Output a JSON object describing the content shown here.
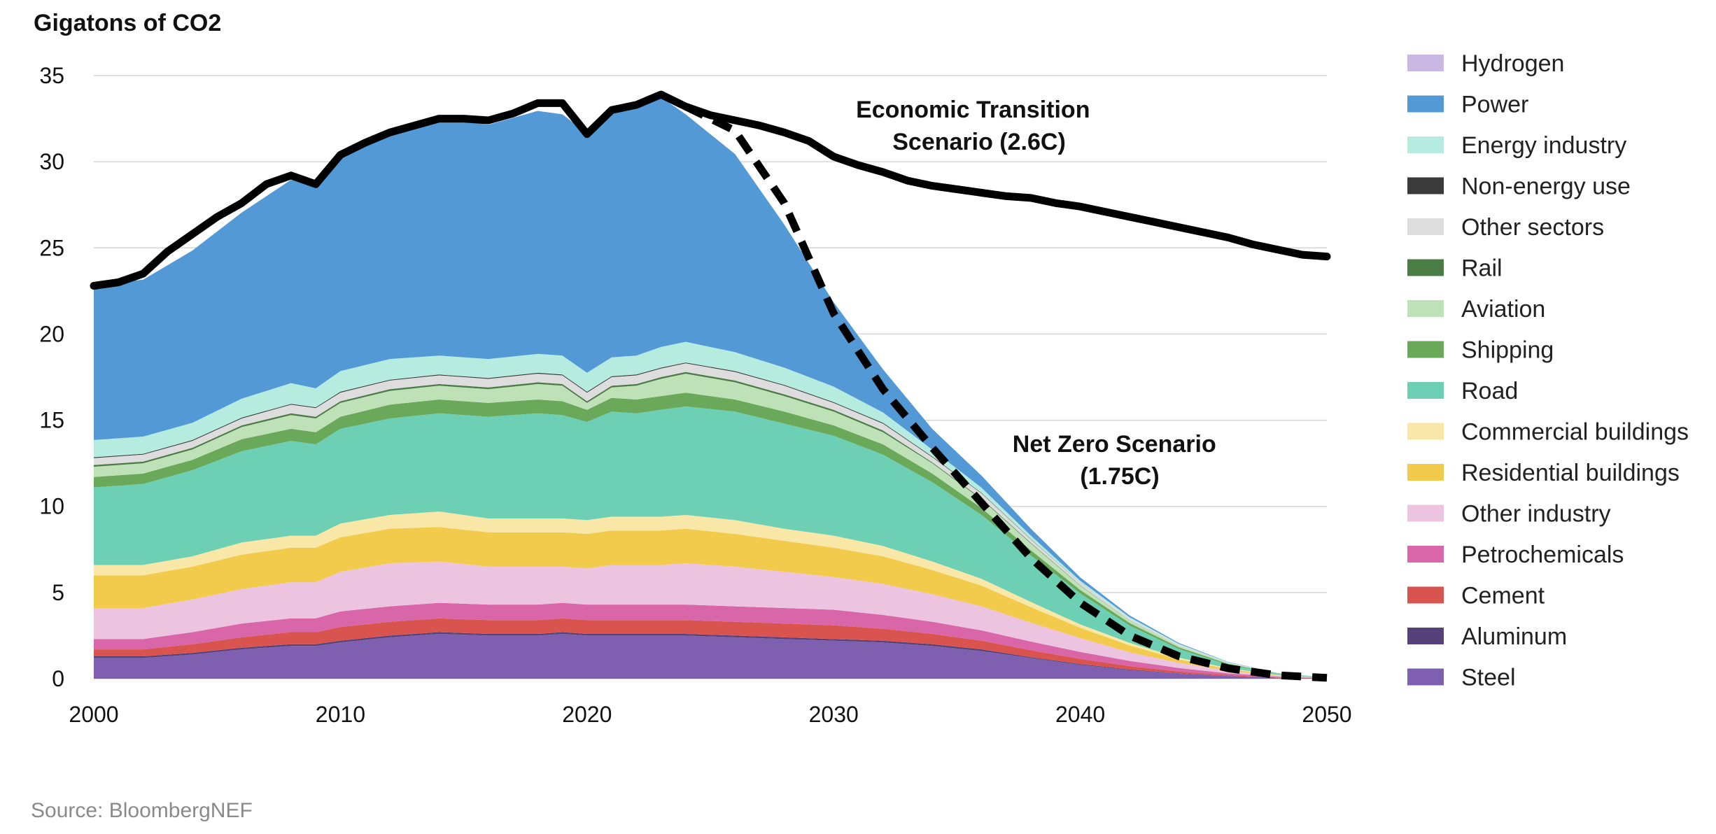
{
  "chart_data": {
    "type": "area",
    "title": "",
    "ylabel": "Gigatons of CO2",
    "xlabel": "",
    "source": "Source: BloombergNEF",
    "xlim": [
      2000,
      2050
    ],
    "ylim": [
      0,
      35
    ],
    "grid": true,
    "legend_position": "right",
    "xticks": [
      "2000",
      "2010",
      "2020",
      "2030",
      "2040",
      "2050"
    ],
    "yticks": [
      "0",
      "5",
      "10",
      "15",
      "20",
      "25",
      "30",
      "35"
    ],
    "x": [
      2000,
      2002,
      2004,
      2006,
      2008,
      2009,
      2010,
      2012,
      2014,
      2016,
      2018,
      2019,
      2020,
      2021,
      2022,
      2023,
      2024,
      2026,
      2028,
      2030,
      2032,
      2034,
      2036,
      2038,
      2040,
      2042,
      2044,
      2046,
      2048,
      2050
    ],
    "series": [
      {
        "name": "Steel",
        "color": "#7e5fb0",
        "values": [
          1.2,
          1.2,
          1.4,
          1.7,
          1.9,
          1.9,
          2.1,
          2.4,
          2.6,
          2.5,
          2.5,
          2.6,
          2.5,
          2.5,
          2.5,
          2.5,
          2.5,
          2.4,
          2.3,
          2.2,
          2.1,
          1.9,
          1.6,
          1.2,
          0.8,
          0.5,
          0.3,
          0.15,
          0.05,
          0.02
        ]
      },
      {
        "name": "Aluminum",
        "color": "#56417a",
        "values": [
          0.1,
          0.1,
          0.1,
          0.1,
          0.1,
          0.1,
          0.1,
          0.1,
          0.1,
          0.1,
          0.1,
          0.1,
          0.1,
          0.1,
          0.1,
          0.1,
          0.1,
          0.1,
          0.1,
          0.1,
          0.1,
          0.1,
          0.1,
          0.05,
          0.05,
          0.03,
          0.02,
          0.01,
          0.0,
          0.0
        ]
      },
      {
        "name": "Cement",
        "color": "#d9534f",
        "values": [
          0.4,
          0.4,
          0.5,
          0.6,
          0.7,
          0.7,
          0.8,
          0.8,
          0.8,
          0.8,
          0.8,
          0.8,
          0.8,
          0.8,
          0.8,
          0.8,
          0.8,
          0.8,
          0.8,
          0.8,
          0.7,
          0.6,
          0.5,
          0.4,
          0.3,
          0.2,
          0.1,
          0.05,
          0.02,
          0.0
        ]
      },
      {
        "name": "Petrochemicals",
        "color": "#d966a8",
        "values": [
          0.6,
          0.6,
          0.7,
          0.8,
          0.8,
          0.8,
          0.9,
          0.9,
          0.9,
          0.9,
          0.9,
          0.9,
          0.9,
          0.9,
          0.9,
          0.9,
          0.9,
          0.9,
          0.9,
          0.9,
          0.8,
          0.7,
          0.6,
          0.5,
          0.4,
          0.3,
          0.2,
          0.1,
          0.05,
          0.01
        ]
      },
      {
        "name": "Other industry",
        "color": "#ecc4df",
        "values": [
          1.8,
          1.8,
          1.9,
          2.0,
          2.1,
          2.1,
          2.3,
          2.5,
          2.4,
          2.2,
          2.2,
          2.1,
          2.1,
          2.3,
          2.3,
          2.3,
          2.4,
          2.3,
          2.1,
          1.9,
          1.8,
          1.6,
          1.4,
          1.1,
          0.8,
          0.5,
          0.3,
          0.15,
          0.05,
          0.01
        ]
      },
      {
        "name": "Residential buildings",
        "color": "#f2ca4c",
        "values": [
          1.9,
          1.9,
          1.9,
          2.0,
          2.0,
          2.0,
          2.0,
          2.0,
          2.0,
          2.0,
          2.0,
          2.0,
          2.0,
          2.0,
          2.0,
          2.0,
          2.0,
          1.9,
          1.8,
          1.7,
          1.6,
          1.4,
          1.2,
          0.9,
          0.6,
          0.4,
          0.2,
          0.1,
          0.03,
          0.01
        ]
      },
      {
        "name": "Commercial buildings",
        "color": "#f8e7a6",
        "values": [
          0.6,
          0.6,
          0.6,
          0.7,
          0.7,
          0.7,
          0.8,
          0.8,
          0.9,
          0.8,
          0.8,
          0.8,
          0.8,
          0.8,
          0.8,
          0.8,
          0.8,
          0.8,
          0.7,
          0.7,
          0.6,
          0.5,
          0.4,
          0.3,
          0.2,
          0.15,
          0.1,
          0.05,
          0.02,
          0.0
        ]
      },
      {
        "name": "Road",
        "color": "#6dd0b4",
        "values": [
          4.5,
          4.7,
          5.0,
          5.3,
          5.5,
          5.3,
          5.5,
          5.6,
          5.7,
          5.9,
          6.1,
          6.0,
          5.7,
          6.1,
          6.0,
          6.2,
          6.3,
          6.3,
          6.1,
          5.8,
          5.3,
          4.6,
          3.7,
          2.7,
          1.8,
          1.0,
          0.5,
          0.2,
          0.07,
          0.02
        ]
      },
      {
        "name": "Shipping",
        "color": "#6aa85a",
        "values": [
          0.6,
          0.6,
          0.6,
          0.7,
          0.7,
          0.7,
          0.7,
          0.8,
          0.8,
          0.8,
          0.8,
          0.8,
          0.7,
          0.8,
          0.8,
          0.8,
          0.8,
          0.7,
          0.7,
          0.6,
          0.6,
          0.5,
          0.4,
          0.3,
          0.2,
          0.15,
          0.1,
          0.05,
          0.02,
          0.0
        ]
      },
      {
        "name": "Aviation",
        "color": "#bfe1b8",
        "values": [
          0.6,
          0.6,
          0.6,
          0.7,
          0.8,
          0.8,
          0.8,
          0.8,
          0.8,
          0.8,
          0.9,
          0.9,
          0.4,
          0.6,
          0.8,
          1.0,
          1.1,
          1.0,
          0.9,
          0.8,
          0.7,
          0.6,
          0.5,
          0.4,
          0.25,
          0.15,
          0.1,
          0.05,
          0.02,
          0.0
        ]
      },
      {
        "name": "Rail",
        "color": "#4a7c45",
        "values": [
          0.1,
          0.1,
          0.1,
          0.1,
          0.1,
          0.1,
          0.1,
          0.1,
          0.1,
          0.1,
          0.1,
          0.1,
          0.1,
          0.1,
          0.1,
          0.1,
          0.1,
          0.1,
          0.1,
          0.1,
          0.1,
          0.05,
          0.05,
          0.03,
          0.02,
          0.01,
          0.0,
          0.0,
          0.0,
          0.0
        ]
      },
      {
        "name": "Other sectors",
        "color": "#dddddd",
        "values": [
          0.4,
          0.4,
          0.4,
          0.4,
          0.5,
          0.5,
          0.5,
          0.5,
          0.5,
          0.5,
          0.5,
          0.5,
          0.5,
          0.5,
          0.5,
          0.5,
          0.5,
          0.5,
          0.5,
          0.4,
          0.4,
          0.3,
          0.3,
          0.2,
          0.15,
          0.1,
          0.05,
          0.02,
          0.0,
          0.0
        ]
      },
      {
        "name": "Non-energy use",
        "color": "#3a3a3a",
        "values": [
          0.05,
          0.05,
          0.05,
          0.05,
          0.05,
          0.05,
          0.05,
          0.05,
          0.05,
          0.05,
          0.05,
          0.05,
          0.05,
          0.05,
          0.05,
          0.05,
          0.05,
          0.05,
          0.05,
          0.05,
          0.05,
          0.04,
          0.03,
          0.02,
          0.01,
          0.0,
          0.0,
          0.0,
          0.0,
          0.0
        ]
      },
      {
        "name": "Energy industry",
        "color": "#b6ebe0",
        "values": [
          1.0,
          1.0,
          1.0,
          1.1,
          1.2,
          1.1,
          1.2,
          1.2,
          1.1,
          1.1,
          1.1,
          1.1,
          1.1,
          1.1,
          1.1,
          1.2,
          1.2,
          1.1,
          1.0,
          0.9,
          0.6,
          0.4,
          0.3,
          0.2,
          0.1,
          0.08,
          0.05,
          0.02,
          0.01,
          0.0
        ]
      },
      {
        "name": "Power",
        "color": "#5299d6",
        "values": [
          9.0,
          9.1,
          10.0,
          10.8,
          11.8,
          11.8,
          12.6,
          13.2,
          13.8,
          13.6,
          14.1,
          14.0,
          13.9,
          14.2,
          14.5,
          14.5,
          13.2,
          11.5,
          8.3,
          4.9,
          2.5,
          1.2,
          0.7,
          0.4,
          0.2,
          0.1,
          0.05,
          0.02,
          0.0,
          0.0
        ]
      },
      {
        "name": "Hydrogen",
        "color": "#c8b8e3",
        "values": [
          0.0,
          0.0,
          0.0,
          0.0,
          0.0,
          0.0,
          0.0,
          0.0,
          0.0,
          0.0,
          0.0,
          0.0,
          0.0,
          0.0,
          0.0,
          0.0,
          0.0,
          0.0,
          0.0,
          0.0,
          0.0,
          0.0,
          0.0,
          0.0,
          0.0,
          0.0,
          0.0,
          0.0,
          0.0,
          0.0
        ]
      }
    ],
    "lines": [
      {
        "name": "Economic Transition Scenario (2.6C)",
        "style": "solid",
        "x": [
          2000,
          2001,
          2002,
          2003,
          2004,
          2005,
          2006,
          2007,
          2008,
          2009,
          2010,
          2011,
          2012,
          2013,
          2014,
          2015,
          2016,
          2017,
          2018,
          2019,
          2020,
          2021,
          2022,
          2023,
          2024,
          2025,
          2026,
          2027,
          2028,
          2029,
          2030,
          2031,
          2032,
          2033,
          2034,
          2035,
          2036,
          2037,
          2038,
          2039,
          2040,
          2041,
          2042,
          2043,
          2044,
          2045,
          2046,
          2047,
          2048,
          2049,
          2050
        ],
        "y": [
          22.8,
          23.0,
          23.5,
          24.8,
          25.8,
          26.8,
          27.6,
          28.7,
          29.2,
          28.7,
          30.4,
          31.1,
          31.7,
          32.1,
          32.5,
          32.5,
          32.4,
          32.8,
          33.4,
          33.4,
          31.6,
          33.0,
          33.3,
          33.9,
          33.2,
          32.7,
          32.4,
          32.1,
          31.7,
          31.2,
          30.3,
          29.8,
          29.4,
          28.9,
          28.6,
          28.4,
          28.2,
          28.0,
          27.9,
          27.6,
          27.4,
          27.1,
          26.8,
          26.5,
          26.2,
          25.9,
          25.6,
          25.2,
          24.9,
          24.6,
          24.5
        ]
      },
      {
        "name": "Net Zero Scenario (1.75C)",
        "style": "dashed",
        "x": [
          2024,
          2026,
          2028,
          2030,
          2032,
          2034,
          2036,
          2038,
          2040,
          2042,
          2044,
          2046,
          2048,
          2050
        ],
        "y": [
          33.2,
          31.8,
          27.6,
          21.2,
          16.8,
          13.4,
          10.2,
          7.0,
          4.4,
          2.5,
          1.3,
          0.6,
          0.2,
          0.05
        ]
      }
    ],
    "annotations": [
      {
        "lines": [
          "Economic Transition",
          "Scenario (2.6C)"
        ]
      },
      {
        "lines": [
          "Net Zero Scenario",
          "(1.75C)"
        ]
      }
    ]
  }
}
